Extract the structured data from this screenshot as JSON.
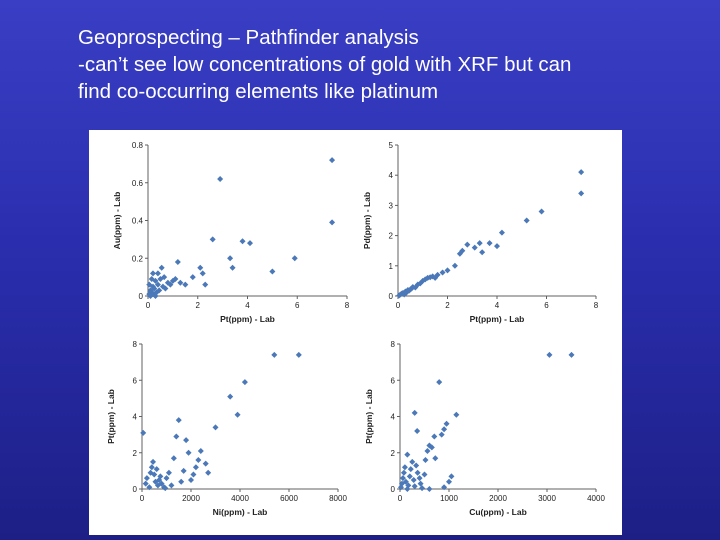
{
  "slide": {
    "title_lines": [
      "Geoprospecting – Pathfinder analysis",
      "-can’t see low concentrations of gold with XRF but can",
      "find co-occurring elements like platinum"
    ]
  },
  "chart_data": [
    {
      "type": "scatter",
      "xlabel": "Pt(ppm) - Lab",
      "ylabel": "Au(ppm) - Lab",
      "xlim": [
        0,
        8
      ],
      "ylim": [
        0,
        0.8
      ],
      "xticks": [
        "0",
        "2",
        "4",
        "6",
        "8"
      ],
      "yticks": [
        "0",
        "0.2",
        "0.4",
        "0.6",
        "0.8"
      ],
      "xtick_values": [
        0,
        2,
        4,
        6,
        8
      ],
      "ytick_values": [
        0,
        0.2,
        0.4,
        0.6,
        0.8
      ],
      "points": [
        [
          0.05,
          0.01
        ],
        [
          0.1,
          0.03
        ],
        [
          0.15,
          0.02
        ],
        [
          0.2,
          0.05
        ],
        [
          0.25,
          0.04
        ],
        [
          0.3,
          0.08
        ],
        [
          0.35,
          0.02
        ],
        [
          0.4,
          0.06
        ],
        [
          0.45,
          0.03
        ],
        [
          0.5,
          0.09
        ],
        [
          0.6,
          0.05
        ],
        [
          0.65,
          0.1
        ],
        [
          0.7,
          0.04
        ],
        [
          0.8,
          0.07
        ],
        [
          0.9,
          0.06
        ],
        [
          1.0,
          0.08
        ],
        [
          1.1,
          0.09
        ],
        [
          1.3,
          0.07
        ],
        [
          0.1,
          0.0
        ],
        [
          0.2,
          0.01
        ],
        [
          0.3,
          0.0
        ],
        [
          0.05,
          0.06
        ],
        [
          0.15,
          0.09
        ],
        [
          0.2,
          0.12
        ],
        [
          0.4,
          0.12
        ],
        [
          0.55,
          0.15
        ],
        [
          1.2,
          0.18
        ],
        [
          1.5,
          0.06
        ],
        [
          1.8,
          0.1
        ],
        [
          2.1,
          0.15
        ],
        [
          2.2,
          0.12
        ],
        [
          2.3,
          0.06
        ],
        [
          2.6,
          0.3
        ],
        [
          2.9,
          0.62
        ],
        [
          3.3,
          0.2
        ],
        [
          3.4,
          0.15
        ],
        [
          3.8,
          0.29
        ],
        [
          4.1,
          0.28
        ],
        [
          5.0,
          0.13
        ],
        [
          5.9,
          0.2
        ],
        [
          7.4,
          0.72
        ],
        [
          7.4,
          0.39
        ]
      ]
    },
    {
      "type": "scatter",
      "xlabel": "Pt(ppm) - Lab",
      "ylabel": "Pd(ppm) - Lab",
      "xlim": [
        0,
        8
      ],
      "ylim": [
        0,
        5
      ],
      "xticks": [
        "0",
        "2",
        "4",
        "6",
        "8"
      ],
      "yticks": [
        "0",
        "1",
        "2",
        "3",
        "4",
        "5"
      ],
      "xtick_values": [
        0,
        2,
        4,
        6,
        8
      ],
      "ytick_values": [
        0,
        1,
        2,
        3,
        4,
        5
      ],
      "points": [
        [
          0.05,
          0.02
        ],
        [
          0.1,
          0.05
        ],
        [
          0.15,
          0.08
        ],
        [
          0.2,
          0.1
        ],
        [
          0.25,
          0.05
        ],
        [
          0.3,
          0.15
        ],
        [
          0.35,
          0.12
        ],
        [
          0.4,
          0.2
        ],
        [
          0.45,
          0.18
        ],
        [
          0.5,
          0.22
        ],
        [
          0.55,
          0.25
        ],
        [
          0.6,
          0.3
        ],
        [
          0.7,
          0.28
        ],
        [
          0.8,
          0.38
        ],
        [
          0.9,
          0.42
        ],
        [
          1.0,
          0.5
        ],
        [
          1.1,
          0.55
        ],
        [
          1.2,
          0.6
        ],
        [
          1.3,
          0.62
        ],
        [
          1.4,
          0.65
        ],
        [
          1.5,
          0.6
        ],
        [
          1.6,
          0.7
        ],
        [
          1.8,
          0.78
        ],
        [
          2.0,
          0.85
        ],
        [
          2.3,
          1.0
        ],
        [
          2.5,
          1.4
        ],
        [
          2.6,
          1.5
        ],
        [
          2.8,
          1.7
        ],
        [
          3.1,
          1.6
        ],
        [
          3.3,
          1.75
        ],
        [
          3.4,
          1.45
        ],
        [
          3.7,
          1.75
        ],
        [
          4.0,
          1.65
        ],
        [
          4.2,
          2.1
        ],
        [
          5.2,
          2.5
        ],
        [
          5.8,
          2.8
        ],
        [
          7.4,
          4.1
        ],
        [
          7.4,
          3.4
        ]
      ]
    },
    {
      "type": "scatter",
      "xlabel": "Ni(ppm) - Lab",
      "ylabel": "Pt(ppm) - Lab",
      "xlim": [
        0,
        8000
      ],
      "ylim": [
        0,
        8
      ],
      "xticks": [
        "0",
        "2000",
        "4000",
        "6000",
        "8000"
      ],
      "yticks": [
        "0",
        "2",
        "4",
        "6",
        "8"
      ],
      "xtick_values": [
        0,
        2000,
        4000,
        6000,
        8000
      ],
      "ytick_values": [
        0,
        2,
        4,
        6,
        8
      ],
      "points": [
        [
          50,
          3.1
        ],
        [
          150,
          0.3
        ],
        [
          200,
          0.6
        ],
        [
          300,
          0.1
        ],
        [
          350,
          0.9
        ],
        [
          400,
          1.2
        ],
        [
          450,
          1.5
        ],
        [
          500,
          0.8
        ],
        [
          550,
          0.4
        ],
        [
          600,
          1.1
        ],
        [
          650,
          0.2
        ],
        [
          700,
          0.5
        ],
        [
          750,
          0.7
        ],
        [
          800,
          0.3
        ],
        [
          900,
          0.1
        ],
        [
          950,
          0.05
        ],
        [
          1000,
          0.6
        ],
        [
          1100,
          0.9
        ],
        [
          1200,
          0.2
        ],
        [
          1300,
          1.7
        ],
        [
          1400,
          2.9
        ],
        [
          1500,
          3.8
        ],
        [
          1600,
          0.4
        ],
        [
          1700,
          1.0
        ],
        [
          1800,
          2.7
        ],
        [
          1900,
          2.0
        ],
        [
          2000,
          0.5
        ],
        [
          2100,
          0.8
        ],
        [
          2200,
          1.2
        ],
        [
          2300,
          1.6
        ],
        [
          2400,
          2.1
        ],
        [
          2600,
          1.4
        ],
        [
          2700,
          0.9
        ],
        [
          3000,
          3.4
        ],
        [
          3600,
          5.1
        ],
        [
          3900,
          4.1
        ],
        [
          4200,
          5.9
        ],
        [
          5400,
          7.4
        ],
        [
          6400,
          7.4
        ]
      ]
    },
    {
      "type": "scatter",
      "xlabel": "Cu(ppm) - Lab",
      "ylabel": "Pt(ppm) - Lab",
      "xlim": [
        0,
        4000
      ],
      "ylim": [
        0,
        8
      ],
      "xticks": [
        "0",
        "1000",
        "2000",
        "3000",
        "4000"
      ],
      "yticks": [
        "0",
        "2",
        "4",
        "6",
        "8"
      ],
      "xtick_values": [
        0,
        1000,
        2000,
        3000,
        4000
      ],
      "ytick_values": [
        0,
        2,
        4,
        6,
        8
      ],
      "points": [
        [
          20,
          0.1
        ],
        [
          40,
          0.3
        ],
        [
          60,
          0.6
        ],
        [
          80,
          0.9
        ],
        [
          100,
          1.2
        ],
        [
          120,
          0.4
        ],
        [
          150,
          1.9
        ],
        [
          170,
          0.2
        ],
        [
          200,
          0.7
        ],
        [
          220,
          1.1
        ],
        [
          250,
          1.5
        ],
        [
          280,
          0.5
        ],
        [
          300,
          0.15
        ],
        [
          330,
          1.3
        ],
        [
          360,
          0.9
        ],
        [
          400,
          0.6
        ],
        [
          420,
          0.3
        ],
        [
          450,
          0.05
        ],
        [
          500,
          0.8
        ],
        [
          520,
          1.6
        ],
        [
          560,
          2.1
        ],
        [
          600,
          2.4
        ],
        [
          650,
          2.3
        ],
        [
          700,
          2.9
        ],
        [
          720,
          1.7
        ],
        [
          800,
          5.9
        ],
        [
          850,
          3.0
        ],
        [
          900,
          3.3
        ],
        [
          950,
          3.6
        ],
        [
          1000,
          0.4
        ],
        [
          1050,
          0.7
        ],
        [
          1150,
          4.1
        ],
        [
          300,
          4.2
        ],
        [
          350,
          3.2
        ],
        [
          3050,
          7.4
        ],
        [
          3500,
          7.4
        ],
        [
          150,
          0.0
        ],
        [
          600,
          0.0
        ],
        [
          900,
          0.1
        ]
      ]
    }
  ]
}
